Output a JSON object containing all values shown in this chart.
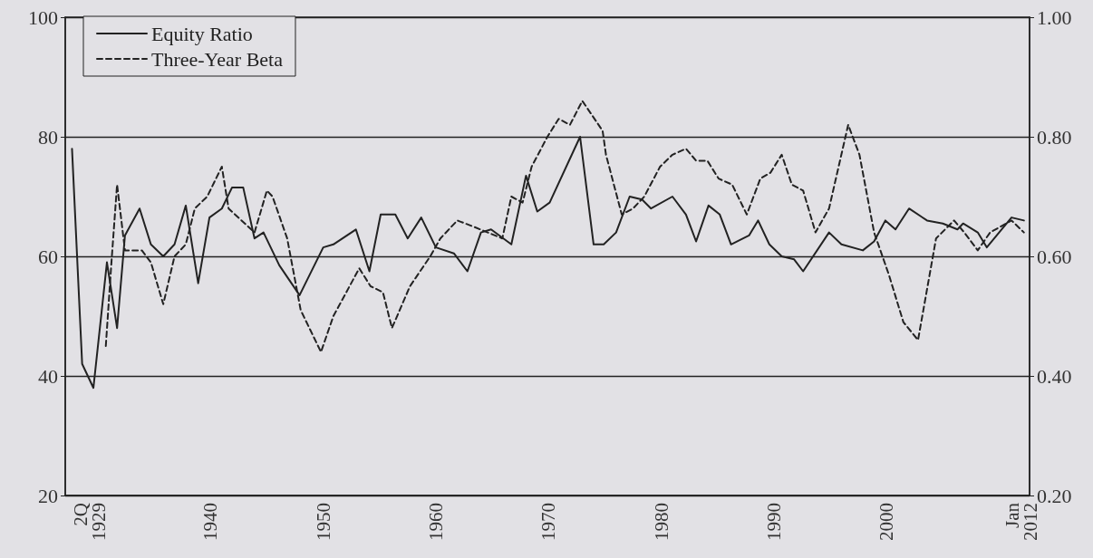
{
  "chart_data": {
    "type": "line",
    "xlim": [
      1927.1,
      2012.7
    ],
    "xticks": [
      {
        "value": 1929.25,
        "label": "2Q 1929"
      },
      1940,
      1950,
      1960,
      1970,
      1980,
      1990,
      2000,
      {
        "value": 2012,
        "label": "Jan 2012"
      }
    ],
    "ylim": [
      20,
      100
    ],
    "yticks": [
      20,
      40,
      60,
      80,
      100
    ],
    "y2lim": [
      0.2,
      1.0
    ],
    "y2ticks": [
      {
        "value": 0.2,
        "label": "0.20"
      },
      {
        "value": 0.4,
        "label": "0.40"
      },
      {
        "value": 0.6,
        "label": "0.60"
      },
      {
        "value": 0.8,
        "label": "0.80"
      },
      {
        "value": 1.0,
        "label": "1.00"
      }
    ],
    "grid": "y",
    "legend": "top left",
    "marker": "none",
    "series": [
      {
        "name": "Equity Ratio",
        "color": "#222222",
        "line_style": "solid",
        "x": [
          1927.7,
          1928.6,
          1929.6,
          1930.8,
          1931.7,
          1932.4,
          1933.7,
          1934.7,
          1935.8,
          1936.8,
          1937.8,
          1938.9,
          1939.9,
          1941.0,
          1941.9,
          1942.9,
          1943.9,
          1944.7,
          1946.1,
          1947.9,
          1950.0,
          1950.9,
          1952.9,
          1954.1,
          1955.1,
          1956.4,
          1957.5,
          1958.7,
          1960.0,
          1961.6,
          1962.8,
          1964.0,
          1964.9,
          1966.7,
          1968.0,
          1969.0,
          1970.1,
          1972.8,
          1974.0,
          1974.9,
          1976.0,
          1977.2,
          1978.3,
          1979.1,
          1981.0,
          1982.2,
          1983.1,
          1984.2,
          1985.2,
          1986.2,
          1987.8,
          1988.6,
          1989.6,
          1990.7,
          1991.8,
          1992.6,
          1994.9,
          1996.0,
          1997.9,
          1998.9,
          1999.9,
          2000.8,
          2002.0,
          2003.6,
          2005.0,
          2006.3,
          2006.8,
          2008.1,
          2008.9,
          2011.1,
          2012.2
        ],
        "values": [
          78,
          42,
          38,
          59,
          48,
          63.5,
          68,
          62,
          60,
          62,
          68.5,
          55.5,
          66.5,
          68,
          71.5,
          71.5,
          63,
          64,
          58.5,
          53.5,
          61.5,
          62,
          64.5,
          57.5,
          67,
          67,
          63,
          66.5,
          61.5,
          60.5,
          57.5,
          64,
          64.5,
          62,
          73.5,
          67.5,
          69,
          80,
          62,
          62,
          64,
          70,
          69.5,
          68,
          70,
          67,
          62.5,
          68.5,
          67,
          62,
          63.5,
          66,
          62,
          60,
          59.5,
          57.5,
          64,
          62,
          61,
          62.5,
          66,
          64.5,
          68,
          66,
          65.5,
          64.5,
          65.5,
          64,
          61.5,
          66.5,
          66
        ]
      },
      {
        "name": "Three-Year Beta",
        "color": "#222222",
        "line_style": "dashed",
        "axis": "y2",
        "x": [
          1930.7,
          1931.2,
          1931.7,
          1932.4,
          1933.9,
          1934.7,
          1935.8,
          1936.8,
          1937.8,
          1938.6,
          1939.7,
          1941.0,
          1941.6,
          1943.9,
          1945.0,
          1945.5,
          1946.8,
          1948.0,
          1949.8,
          1950.9,
          1953.2,
          1954.2,
          1955.3,
          1956.1,
          1957.7,
          1959.5,
          1960.4,
          1961.9,
          1963.3,
          1964.6,
          1965.9,
          1966.7,
          1967.7,
          1968.5,
          1969.9,
          1970.9,
          1971.9,
          1973.0,
          1974.8,
          1975.1,
          1976.5,
          1977.5,
          1978.5,
          1979.9,
          1981.0,
          1982.2,
          1983.1,
          1984.1,
          1985.1,
          1986.3,
          1987.6,
          1988.8,
          1989.7,
          1990.7,
          1991.6,
          1992.6,
          1993.7,
          1994.9,
          1996.6,
          1997.6,
          1998.9,
          2000.2,
          2001.5,
          2002.8,
          2004.4,
          2006.0,
          2006.9,
          2008.1,
          2009.2,
          2011.1,
          2012.2
        ],
        "values": [
          0.45,
          0.59,
          0.72,
          0.61,
          0.61,
          0.59,
          0.52,
          0.6,
          0.62,
          0.68,
          0.7,
          0.75,
          0.68,
          0.64,
          0.71,
          0.7,
          0.63,
          0.51,
          0.44,
          0.5,
          0.58,
          0.55,
          0.54,
          0.48,
          0.55,
          0.6,
          0.63,
          0.66,
          0.65,
          0.64,
          0.63,
          0.7,
          0.69,
          0.75,
          0.8,
          0.83,
          0.82,
          0.86,
          0.81,
          0.77,
          0.67,
          0.68,
          0.7,
          0.75,
          0.77,
          0.78,
          0.76,
          0.76,
          0.73,
          0.72,
          0.67,
          0.73,
          0.74,
          0.77,
          0.72,
          0.71,
          0.64,
          0.68,
          0.82,
          0.77,
          0.64,
          0.57,
          0.49,
          0.46,
          0.63,
          0.66,
          0.64,
          0.61,
          0.64,
          0.66,
          0.64
        ]
      }
    ]
  }
}
